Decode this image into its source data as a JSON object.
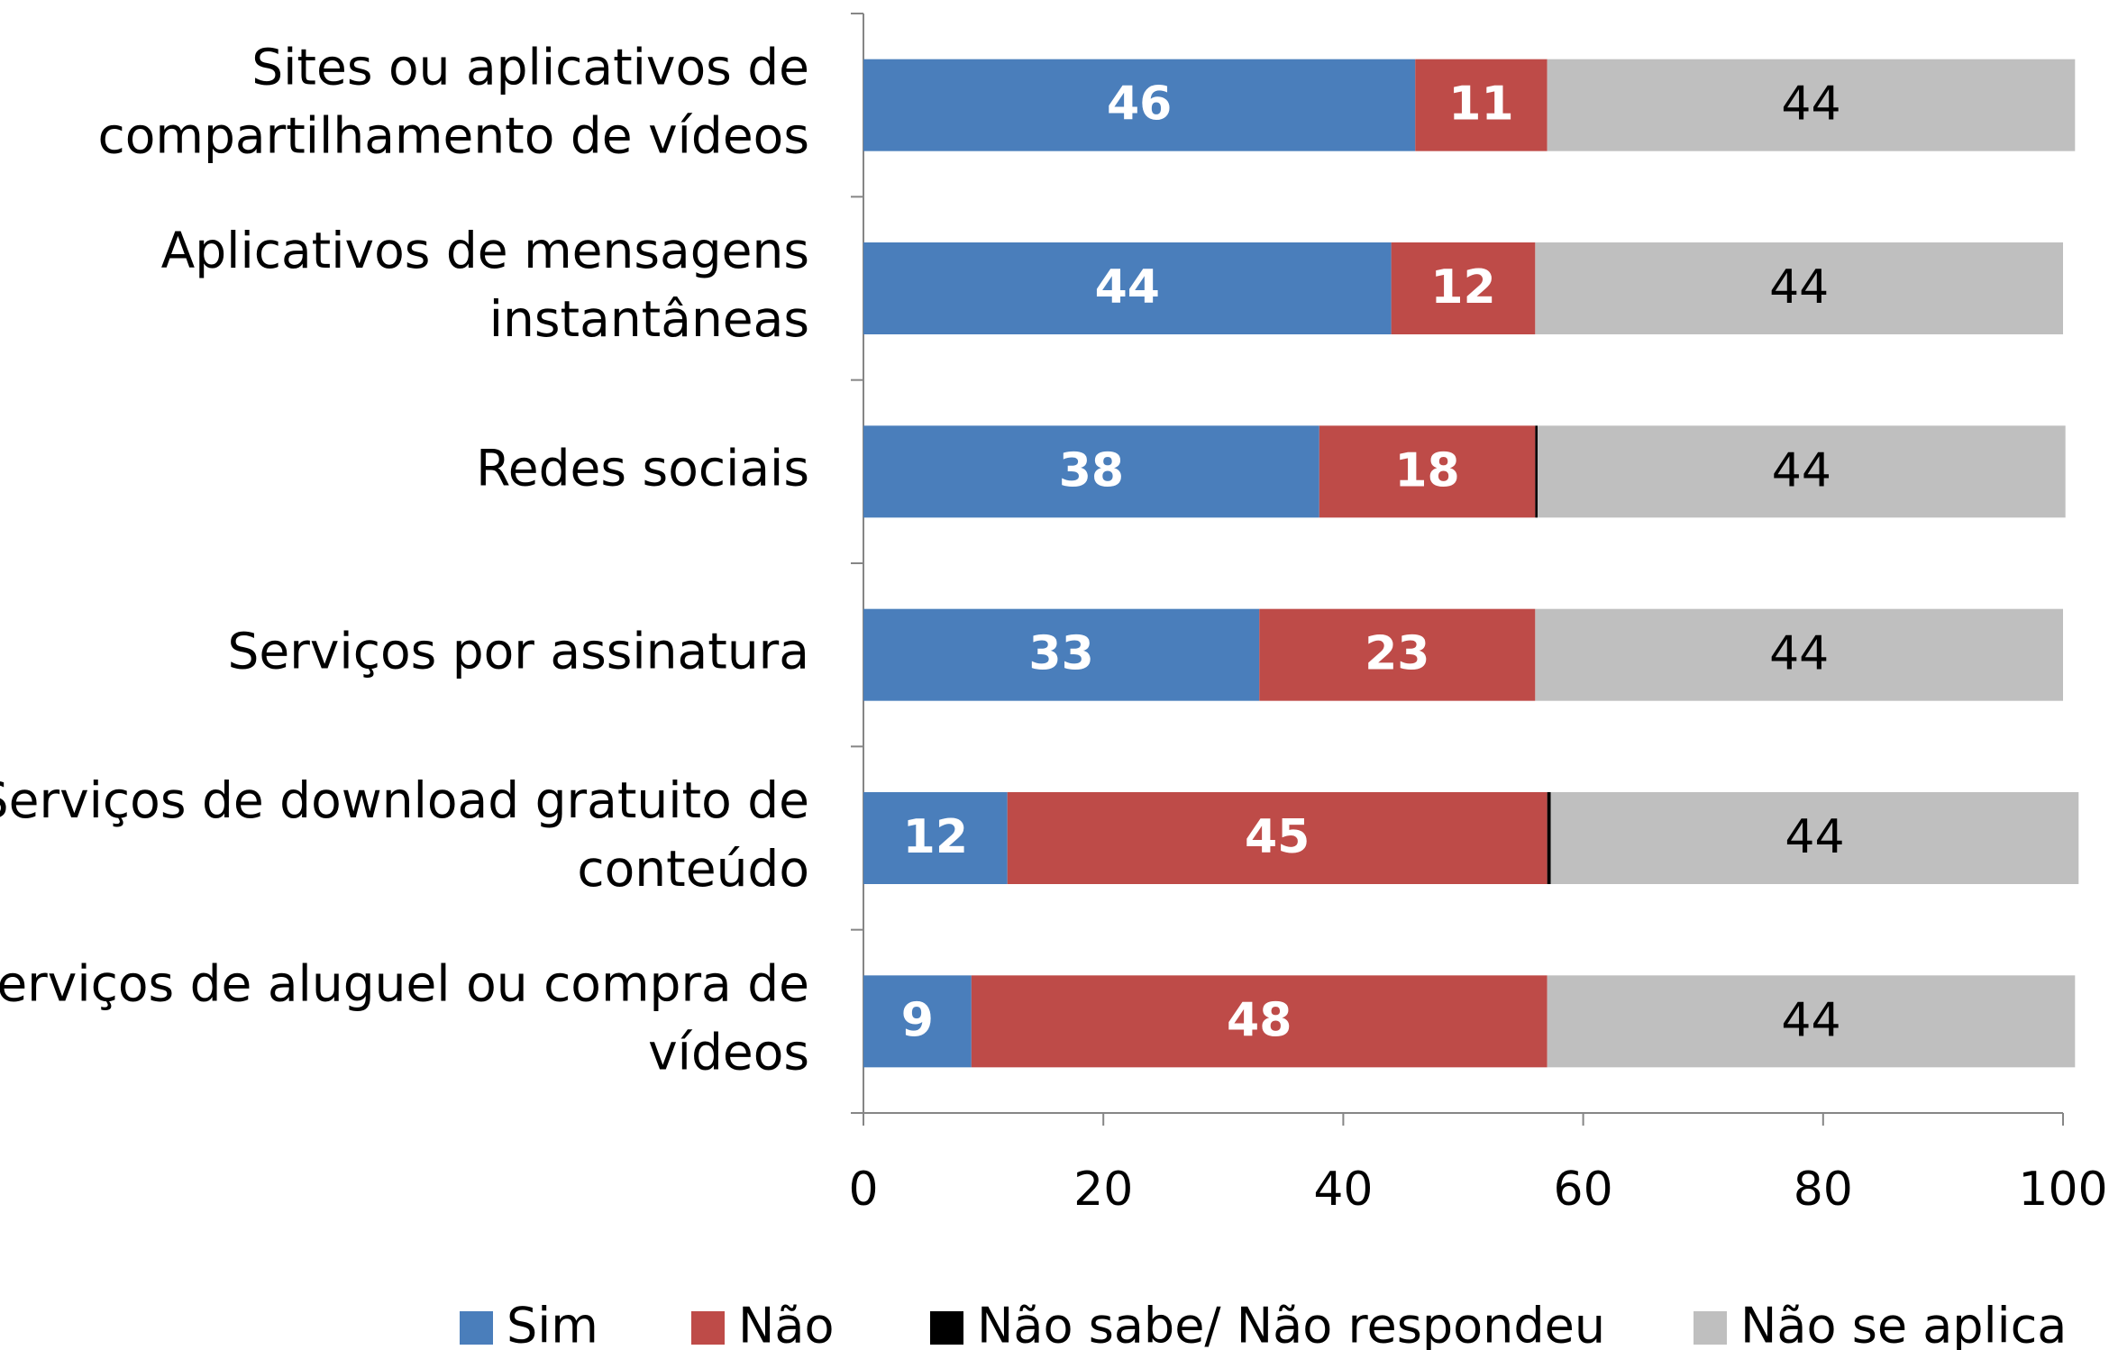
{
  "chart_data": {
    "type": "bar",
    "orientation": "horizontal",
    "stacked": true,
    "categories": [
      "Sites ou aplicativos de\ncompartilhamento de vídeos",
      "Aplicativos de mensagens\ninstantâneas",
      "Redes sociais",
      "Serviços por assinatura",
      "Serviços de download gratuito de\nconteúdo",
      "Serviços de aluguel ou compra de\nvídeos"
    ],
    "series": [
      {
        "name": "Sim",
        "color": "#4a7ebb",
        "values": [
          46,
          44,
          38,
          33,
          12,
          9
        ]
      },
      {
        "name": "Não",
        "color": "#be4b48",
        "values": [
          11,
          12,
          18,
          23,
          45,
          48
        ]
      },
      {
        "name": "Não sabe/ Não respondeu",
        "color": "#000000",
        "values": [
          0,
          0,
          0.2,
          0,
          0.3,
          0
        ]
      },
      {
        "name": "Não se aplica",
        "color": "#bfbfbf",
        "values": [
          44,
          44,
          44,
          44,
          44,
          44
        ]
      }
    ],
    "xlim": [
      0,
      100
    ],
    "xticks": [
      0,
      20,
      40,
      60,
      80,
      100
    ],
    "legend": "bottom"
  }
}
